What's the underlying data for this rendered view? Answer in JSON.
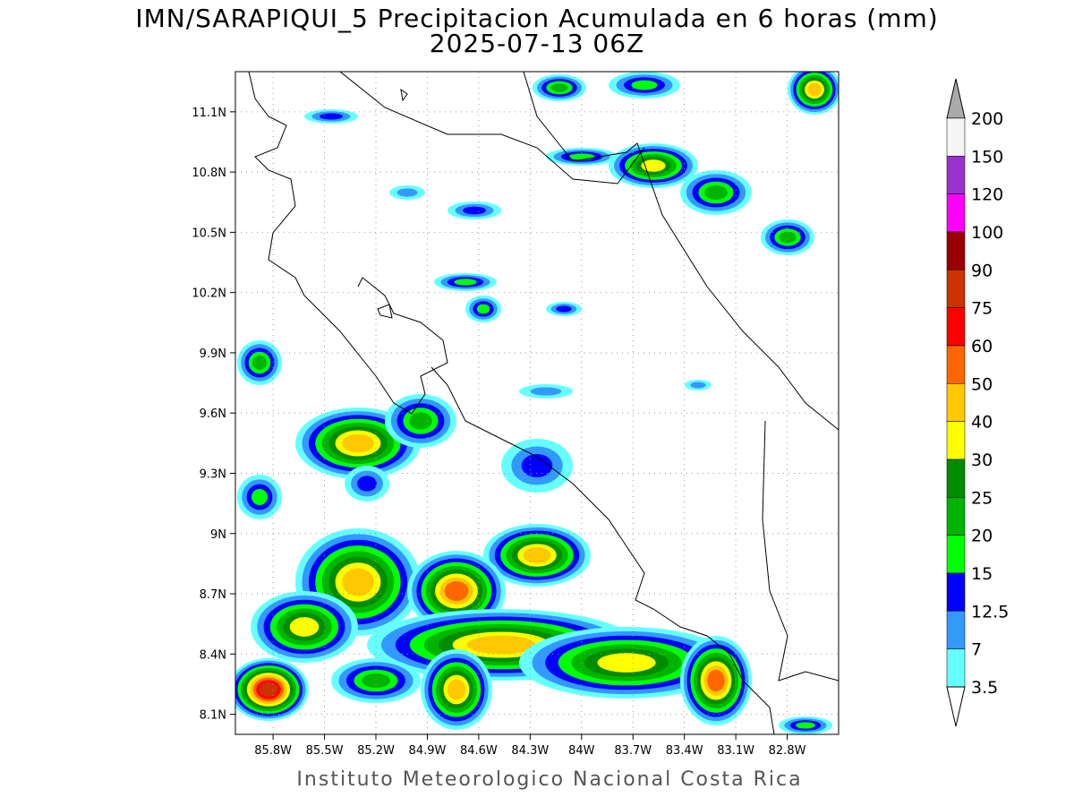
{
  "title": "IMN/SARAPIQUI_5 Precipitacion Acumulada en 6 horas (mm)",
  "subtitle": "2025-07-13 06Z",
  "map": {
    "xlim": [
      -86.02,
      -82.5
    ],
    "ylim": [
      8.0,
      11.3
    ],
    "grid": true,
    "xticks": [
      {
        "value": -85.8,
        "label": "85.8W"
      },
      {
        "value": -85.5,
        "label": "85.5W"
      },
      {
        "value": -85.2,
        "label": "85.2W"
      },
      {
        "value": -84.9,
        "label": "84.9W"
      },
      {
        "value": -84.6,
        "label": "84.6W"
      },
      {
        "value": -84.3,
        "label": "84.3W"
      },
      {
        "value": -84.0,
        "label": "84W"
      },
      {
        "value": -83.7,
        "label": "83.7W"
      },
      {
        "value": -83.4,
        "label": "83.4W"
      },
      {
        "value": -83.1,
        "label": "83.1W"
      },
      {
        "value": -82.8,
        "label": "82.8W"
      }
    ],
    "yticks": [
      {
        "value": 8.1,
        "label": "8.1N"
      },
      {
        "value": 8.4,
        "label": "8.4N"
      },
      {
        "value": 8.7,
        "label": "8.7N"
      },
      {
        "value": 9.0,
        "label": "9N"
      },
      {
        "value": 9.3,
        "label": "9.3N"
      },
      {
        "value": 9.6,
        "label": "9.6N"
      },
      {
        "value": 9.9,
        "label": "9.9N"
      },
      {
        "value": 10.2,
        "label": "10.2N"
      },
      {
        "value": 10.5,
        "label": "10.5N"
      },
      {
        "value": 10.8,
        "label": "10.8N"
      },
      {
        "value": 11.1,
        "label": "11.1N"
      }
    ]
  },
  "colorbar": {
    "labels": [
      "200",
      "150",
      "120",
      "100",
      "90",
      "75",
      "60",
      "50",
      "40",
      "30",
      "25",
      "20",
      "15",
      "12.5",
      "7",
      "3.5"
    ],
    "colors": [
      "#f5f5f5",
      "#9933cc",
      "#ff00ff",
      "#990000",
      "#cc3300",
      "#ff0000",
      "#ff6600",
      "#ffc800",
      "#ffff00",
      "#008c00",
      "#00b400",
      "#00ff00",
      "#0000ff",
      "#3399ff",
      "#66ffff"
    ],
    "over_color": "#aaaaaa",
    "under_color": "#ffffff"
  },
  "footer": "Instituto Meteorologico Nacional Costa Rica"
}
